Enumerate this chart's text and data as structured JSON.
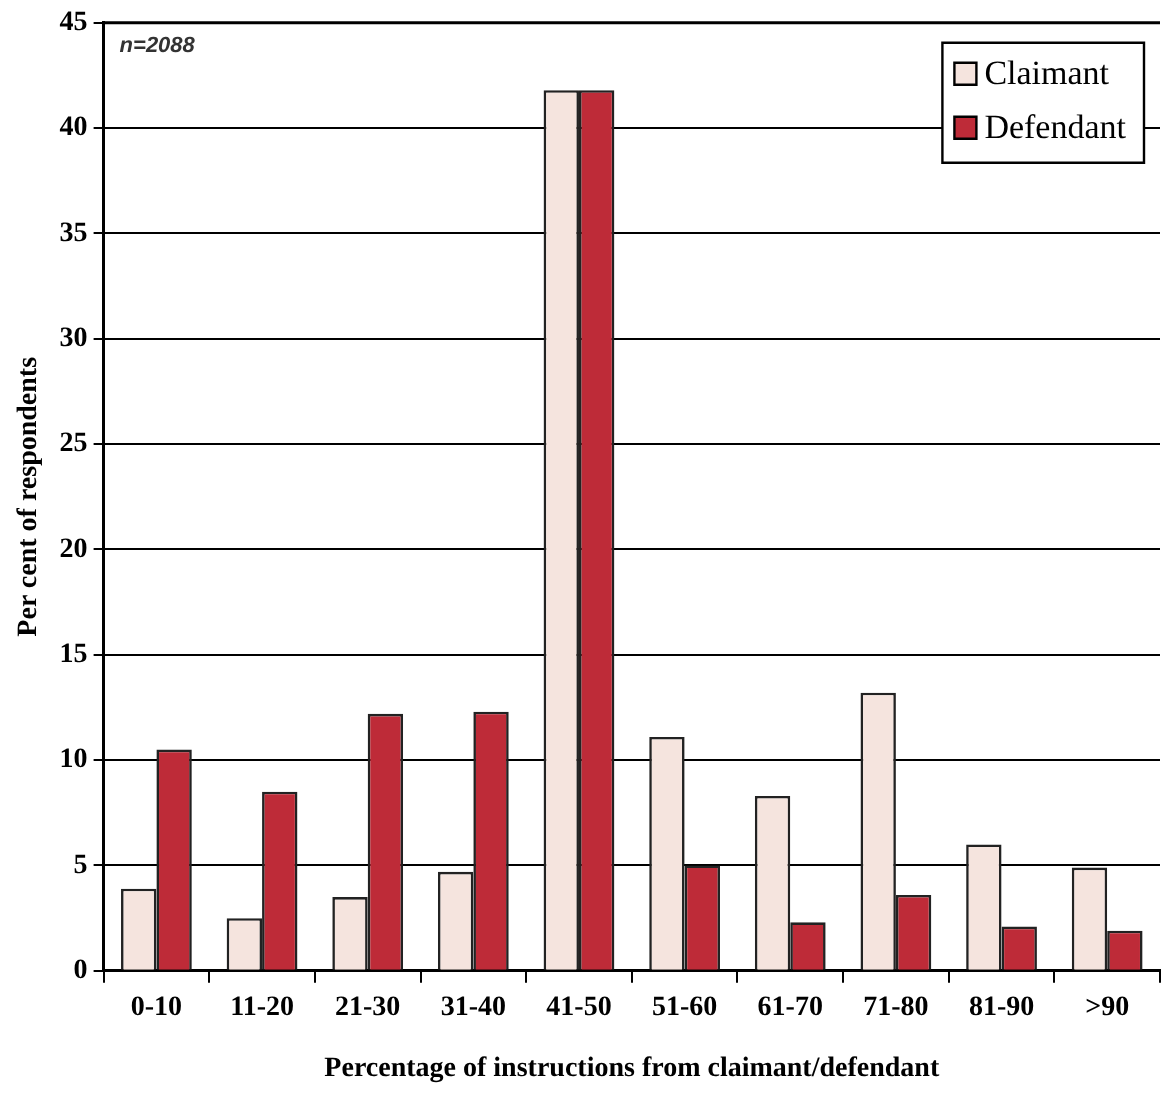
{
  "chart_data": {
    "type": "bar",
    "xlabel": "Percentage of instructions from claimant/defendant",
    "ylabel": "Per cent of respondents",
    "categories": [
      "0-10",
      "11-20",
      "21-30",
      "31-40",
      "41-50",
      "51-60",
      "61-70",
      "71-80",
      "81-90",
      ">90"
    ],
    "series": [
      {
        "name": "Claimant",
        "color": "#f5e4de",
        "values": [
          3.9,
          2.5,
          3.5,
          4.7,
          41.8,
          11.1,
          8.3,
          13.2,
          6.0,
          4.9
        ]
      },
      {
        "name": "Defendant",
        "color": "#be2b38",
        "values": [
          10.5,
          8.5,
          12.2,
          12.3,
          41.8,
          5.0,
          2.3,
          3.6,
          2.1,
          1.9
        ]
      }
    ],
    "ylim": [
      0,
      45
    ],
    "yticks": [
      0,
      5,
      10,
      15,
      20,
      25,
      30,
      35,
      40,
      45
    ],
    "grid": "y",
    "legend": "top right",
    "annotations": [
      "n=2088"
    ]
  }
}
